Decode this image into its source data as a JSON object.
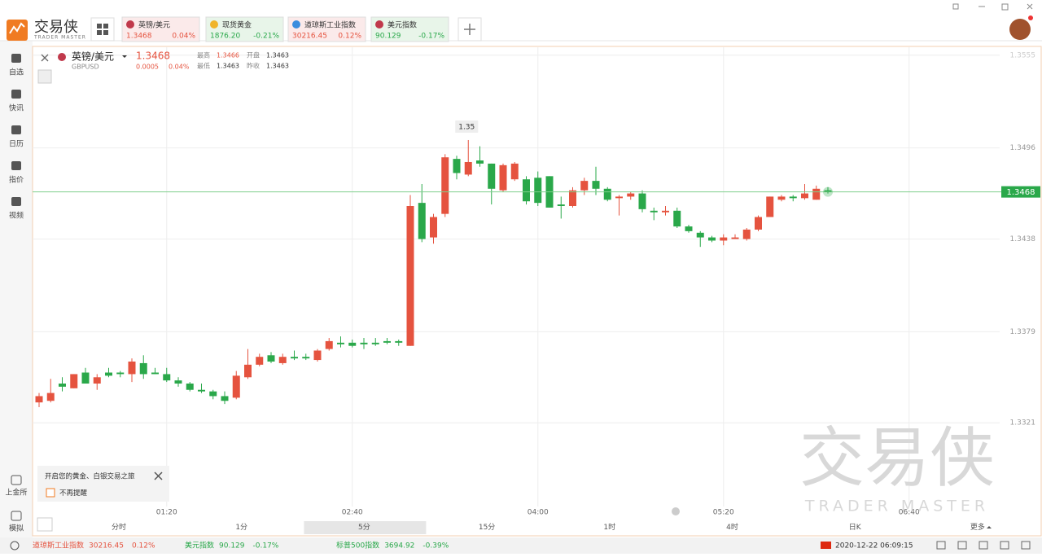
{
  "header": {
    "logo_text": "交易侠",
    "logo_sub": "TRADER MASTER",
    "tabs": [
      {
        "name": "英镑/美元",
        "price": "1.3468",
        "change": "0.04%"
      },
      {
        "name": "现货黄金",
        "price": "1876.20",
        "change": "-0.21%"
      },
      {
        "name": "道琼斯工业指数",
        "price": "30216.45",
        "change": "0.12%"
      },
      {
        "name": "美元指数",
        "price": "90.129",
        "change": "-0.17%"
      }
    ]
  },
  "sidebar": {
    "items": [
      "自选",
      "快讯",
      "日历",
      "指价",
      "视频"
    ],
    "bottom_items": [
      "上金所",
      "模拟"
    ]
  },
  "quote": {
    "symbol": "英镑/美元",
    "code": "GBPUSD",
    "price": "1.3468",
    "change": "0.0005",
    "change_pct": "0.04%",
    "high_label": "最高",
    "high": "1.3466",
    "open_label": "开盘",
    "open": "1.3463",
    "low_label": "最低",
    "low": "1.3463",
    "prev_label": "昨收",
    "prev_close": "1.3463"
  },
  "chart_data": {
    "type": "candlestick",
    "open": [
      1.3334,
      1.3335,
      1.3346,
      1.3343,
      1.3353,
      1.3346,
      1.3353,
      1.3353,
      1.3352,
      1.3359,
      1.3353,
      1.3352,
      1.3348,
      1.3346,
      1.3342,
      1.3341,
      1.3338,
      1.3337,
      1.335,
      1.3358,
      1.3364,
      1.3359,
      1.3363,
      1.3363,
      1.3361,
      1.3368,
      1.3372,
      1.3372,
      1.3372,
      1.3372,
      1.3373,
      1.3373,
      1.337,
      1.3461,
      1.3439,
      1.3454,
      1.3489,
      1.3479,
      1.3488,
      1.3486,
      1.3469,
      1.3476,
      1.3476,
      1.3477,
      1.3478,
      1.346,
      1.3459,
      1.3469,
      1.3475,
      1.347,
      1.3464,
      1.3465,
      1.3467,
      1.3456,
      1.3455,
      1.3456,
      1.3446,
      1.3442,
      1.3439,
      1.3437,
      1.3438,
      1.3438,
      1.3444,
      1.3452,
      1.3463,
      1.3465,
      1.3464,
      1.3463,
      1.3469
    ],
    "high": [
      1.334,
      1.3349,
      1.335,
      1.3352,
      1.3356,
      1.3352,
      1.3356,
      1.3354,
      1.3362,
      1.3364,
      1.3356,
      1.3356,
      1.335,
      1.3347,
      1.3346,
      1.3342,
      1.3341,
      1.3354,
      1.3368,
      1.3365,
      1.3366,
      1.3365,
      1.3367,
      1.3365,
      1.3368,
      1.3375,
      1.3376,
      1.3374,
      1.3375,
      1.3375,
      1.3375,
      1.3374,
      1.3466,
      1.3473,
      1.3454,
      1.3492,
      1.3491,
      1.3501,
      1.3497,
      1.3486,
      1.3486,
      1.3487,
      1.3478,
      1.3481,
      1.3478,
      1.3465,
      1.3471,
      1.3477,
      1.3484,
      1.3471,
      1.3466,
      1.3468,
      1.3469,
      1.3458,
      1.3459,
      1.3458,
      1.3447,
      1.3443,
      1.344,
      1.3441,
      1.3441,
      1.3445,
      1.3453,
      1.3465,
      1.3466,
      1.3466,
      1.3473,
      1.3472,
      1.3471
    ],
    "low": [
      1.3331,
      1.3334,
      1.3341,
      1.3343,
      1.3346,
      1.3342,
      1.335,
      1.335,
      1.3347,
      1.3349,
      1.3352,
      1.3347,
      1.3344,
      1.3341,
      1.334,
      1.3336,
      1.3333,
      1.3336,
      1.3349,
      1.3357,
      1.3359,
      1.3358,
      1.3361,
      1.3361,
      1.336,
      1.3367,
      1.3369,
      1.3369,
      1.3368,
      1.337,
      1.3371,
      1.337,
      1.337,
      1.3436,
      1.3435,
      1.3452,
      1.3476,
      1.3478,
      1.3484,
      1.346,
      1.3468,
      1.3475,
      1.346,
      1.3459,
      1.3458,
      1.3451,
      1.3458,
      1.3466,
      1.3466,
      1.3462,
      1.3453,
      1.3463,
      1.3455,
      1.345,
      1.3453,
      1.3445,
      1.3442,
      1.3433,
      1.3436,
      1.3434,
      1.3438,
      1.3437,
      1.3443,
      1.3452,
      1.3462,
      1.3462,
      1.3463,
      1.3463,
      1.3467
    ],
    "close": [
      1.3338,
      1.334,
      1.3344,
      1.3352,
      1.3346,
      1.335,
      1.3351,
      1.3352,
      1.336,
      1.3352,
      1.3352,
      1.3348,
      1.3346,
      1.3342,
      1.3341,
      1.3338,
      1.3335,
      1.3351,
      1.3358,
      1.3363,
      1.336,
      1.3363,
      1.3362,
      1.3362,
      1.3367,
      1.3373,
      1.3371,
      1.337,
      1.3371,
      1.3371,
      1.3372,
      1.3372,
      1.3459,
      1.3438,
      1.3452,
      1.349,
      1.348,
      1.3487,
      1.3486,
      1.347,
      1.3485,
      1.3486,
      1.3462,
      1.3461,
      1.3458,
      1.3459,
      1.3469,
      1.3475,
      1.347,
      1.3463,
      1.3465,
      1.3467,
      1.3457,
      1.3455,
      1.3456,
      1.3446,
      1.3443,
      1.3439,
      1.3437,
      1.3439,
      1.3439,
      1.3444,
      1.3452,
      1.3465,
      1.3465,
      1.3464,
      1.3467,
      1.347,
      1.3468
    ],
    "up_color": "#e5533f",
    "down_color": "#2aa84a",
    "ylim": [
      1.3261,
      1.3558
    ],
    "yticks": [
      1.3555,
      1.3496,
      1.3438,
      1.3379,
      1.3321
    ],
    "xticks": [
      "01:20",
      "02:40",
      "04:00",
      "05:20",
      "06:40"
    ],
    "grid": true,
    "last_price": 1.3468,
    "max_label": {
      "value": 1.3501,
      "label": "1.35"
    }
  },
  "popup": {
    "text": "开启您的黄金、白银交易之旅",
    "checkbox": "不再提醒"
  },
  "periods": [
    "分时",
    "1分",
    "5分",
    "15分",
    "1时",
    "4时",
    "日K",
    "更多"
  ],
  "selected_period": 2,
  "status_bar": {
    "items": [
      {
        "name": "道琼斯工业指数",
        "price": "30216.45",
        "change": "0.12%"
      },
      {
        "name": "美元指数",
        "price": "90.129",
        "change": "-0.17%"
      },
      {
        "name": "标普500指数",
        "price": "3694.92",
        "change": "-0.39%"
      }
    ],
    "datetime": "2020-12-22 06:09:15"
  },
  "watermark": {
    "text": "交易侠",
    "sub": "TRADER MASTER"
  }
}
